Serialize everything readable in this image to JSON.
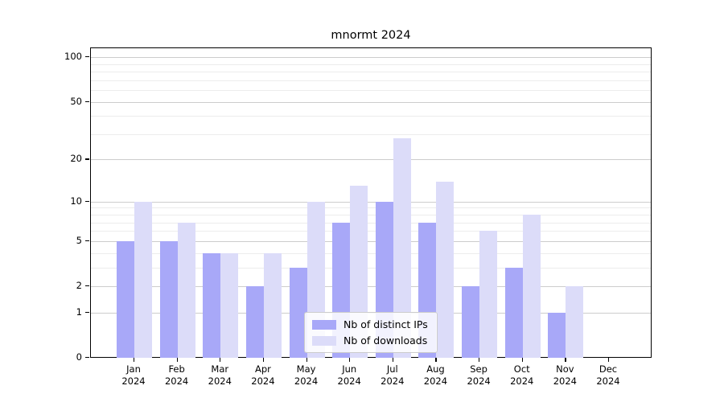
{
  "chart": {
    "title": "mnormt 2024",
    "legend": {
      "ips_label": "Nb of distinct IPs",
      "downloads_label": "Nb of downloads"
    }
  },
  "chart_data": {
    "type": "bar",
    "title": "mnormt 2024",
    "categories": [
      "Jan 2024",
      "Feb 2024",
      "Mar 2024",
      "Apr 2024",
      "May 2024",
      "Jun 2024",
      "Jul 2024",
      "Aug 2024",
      "Sep 2024",
      "Oct 2024",
      "Nov 2024",
      "Dec 2024"
    ],
    "months": [
      "Jan",
      "Feb",
      "Mar",
      "Apr",
      "May",
      "Jun",
      "Jul",
      "Aug",
      "Sep",
      "Oct",
      "Nov",
      "Dec"
    ],
    "year": "2024",
    "series": [
      {
        "name": "Nb of distinct IPs",
        "color": "#a8a8f8",
        "values": [
          5,
          5,
          4,
          2,
          3,
          7,
          10,
          7,
          2,
          3,
          1,
          0
        ]
      },
      {
        "name": "Nb of downloads",
        "color": "#dcdcf9",
        "values": [
          10,
          7,
          4,
          4,
          10,
          13,
          28,
          14,
          6,
          8,
          2,
          0
        ]
      }
    ],
    "xlabel": "",
    "ylabel": "",
    "yscale": "log1p",
    "ylim": [
      0,
      115
    ],
    "y_major_ticks": [
      0,
      1,
      2,
      5,
      10,
      20,
      50,
      100
    ],
    "y_minor_gridlines": [
      3,
      4,
      6,
      7,
      8,
      9,
      30,
      40,
      60,
      70,
      80,
      90
    ],
    "grid": true,
    "legend_position": "lower center"
  }
}
